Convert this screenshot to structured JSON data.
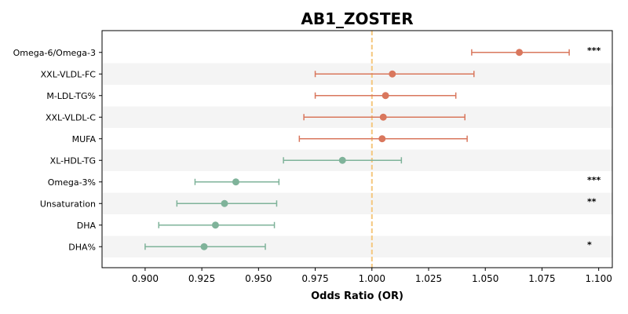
{
  "chart_data": {
    "type": "forest",
    "title": "AB1_ZOSTER",
    "xlabel": "Odds Ratio (OR)",
    "xlim": [
      0.881,
      1.106
    ],
    "xticks": [
      0.9,
      0.925,
      0.95,
      0.975,
      1.0,
      1.025,
      1.05,
      1.075,
      1.1
    ],
    "xtick_labels": [
      "0.900",
      "0.925",
      "0.950",
      "0.975",
      "1.000",
      "1.025",
      "1.050",
      "1.075",
      "1.100"
    ],
    "reference_line": 1.0,
    "reference_color": "#f5c77e",
    "colors": {
      "positive": "#d9775d",
      "negative": "#7fb39a",
      "band": "#f4f4f4"
    },
    "rows": [
      {
        "label": "Omega-6/Omega-3",
        "or": 1.065,
        "lower": 1.044,
        "upper": 1.087,
        "sig": "***",
        "color": "#d9775d"
      },
      {
        "label": "XXL-VLDL-FC",
        "or": 1.009,
        "lower": 0.975,
        "upper": 1.045,
        "sig": "",
        "color": "#d9775d"
      },
      {
        "label": "M-LDL-TG%",
        "or": 1.006,
        "lower": 0.975,
        "upper": 1.037,
        "sig": "",
        "color": "#d9775d"
      },
      {
        "label": "XXL-VLDL-C",
        "or": 1.005,
        "lower": 0.97,
        "upper": 1.041,
        "sig": "",
        "color": "#d9775d"
      },
      {
        "label": "MUFA",
        "or": 1.0045,
        "lower": 0.968,
        "upper": 1.042,
        "sig": "",
        "color": "#d9775d"
      },
      {
        "label": "XL-HDL-TG",
        "or": 0.987,
        "lower": 0.961,
        "upper": 1.013,
        "sig": "",
        "color": "#7fb39a"
      },
      {
        "label": "Omega-3%",
        "or": 0.94,
        "lower": 0.922,
        "upper": 0.959,
        "sig": "***",
        "color": "#7fb39a"
      },
      {
        "label": "Unsaturation",
        "or": 0.935,
        "lower": 0.914,
        "upper": 0.958,
        "sig": "**",
        "color": "#7fb39a"
      },
      {
        "label": "DHA",
        "or": 0.931,
        "lower": 0.906,
        "upper": 0.957,
        "sig": "",
        "color": "#7fb39a"
      },
      {
        "label": "DHA%",
        "or": 0.926,
        "lower": 0.9,
        "upper": 0.953,
        "sig": "*",
        "color": "#7fb39a"
      }
    ]
  }
}
